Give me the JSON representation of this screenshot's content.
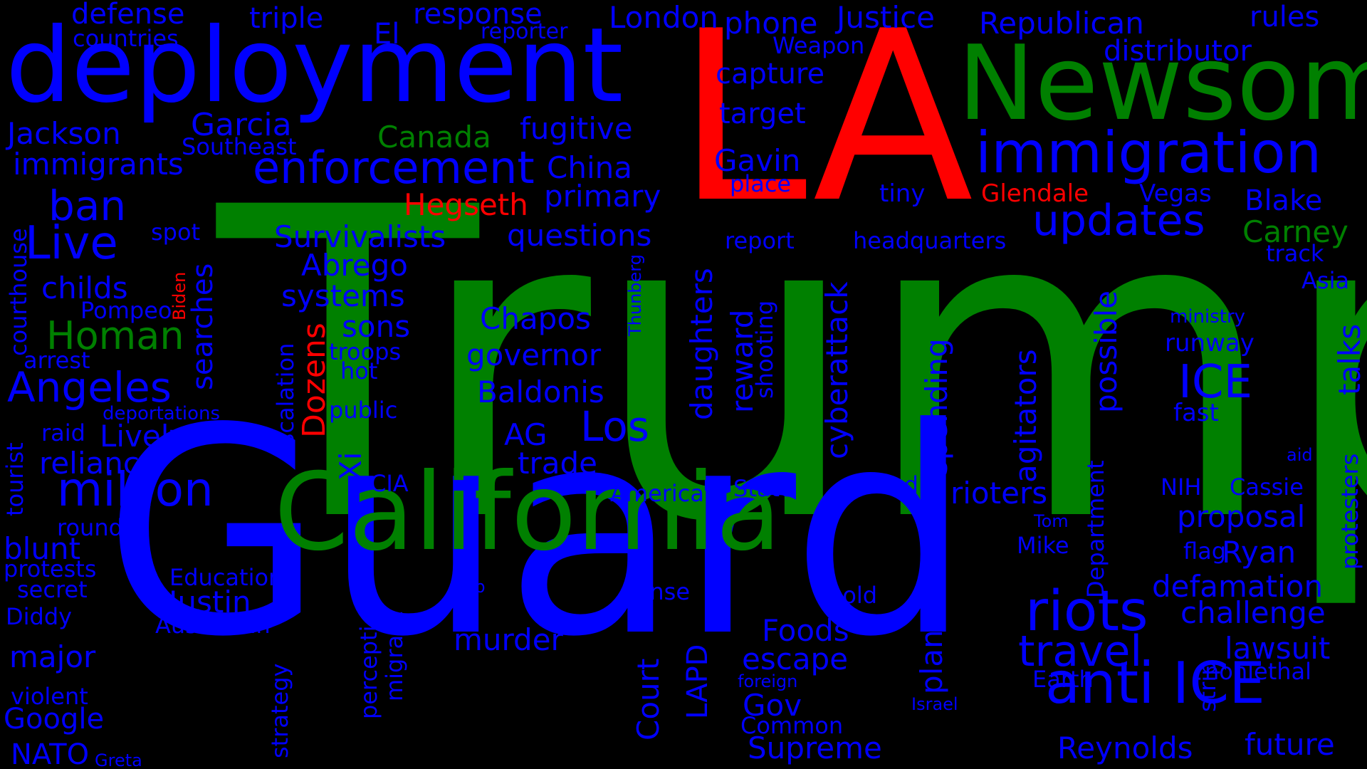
{
  "colors": {
    "background": "#000000",
    "blue": "#0000ff",
    "green": "#008000",
    "red": "#ff0000"
  },
  "words": [
    {
      "text": "Trump",
      "color": "green"
    },
    {
      "text": "Guard",
      "color": "blue"
    },
    {
      "text": "LA",
      "color": "red"
    },
    {
      "text": "deployment",
      "color": "blue"
    },
    {
      "text": "California",
      "color": "green"
    },
    {
      "text": "Newsom",
      "color": "green"
    },
    {
      "text": "immigration",
      "color": "blue"
    },
    {
      "text": "anti ICE",
      "color": "blue"
    },
    {
      "text": "riots",
      "color": "blue"
    },
    {
      "text": "travel",
      "color": "blue"
    },
    {
      "text": "enforcement",
      "color": "blue"
    },
    {
      "text": "million",
      "color": "blue"
    },
    {
      "text": "updates",
      "color": "blue"
    },
    {
      "text": "Live",
      "color": "blue"
    },
    {
      "text": "Angeles",
      "color": "blue"
    },
    {
      "text": "ban",
      "color": "blue"
    },
    {
      "text": "Los",
      "color": "blue"
    },
    {
      "text": "ICE",
      "color": "blue"
    },
    {
      "text": "Homan",
      "color": "green"
    },
    {
      "text": "Canada",
      "color": "green"
    },
    {
      "text": "Carney",
      "color": "green"
    },
    {
      "text": "Hegseth",
      "color": "red"
    },
    {
      "text": "Glendale",
      "color": "red"
    },
    {
      "text": "Dozens",
      "color": "red"
    },
    {
      "text": "Biden",
      "color": "red"
    },
    {
      "text": "Garcia",
      "color": "blue"
    },
    {
      "text": "Jackson",
      "color": "blue"
    },
    {
      "text": "immigrants",
      "color": "blue"
    },
    {
      "text": "defense",
      "color": "blue"
    },
    {
      "text": "countries",
      "color": "blue"
    },
    {
      "text": "triple",
      "color": "blue"
    },
    {
      "text": "El",
      "color": "blue"
    },
    {
      "text": "response",
      "color": "blue"
    },
    {
      "text": "reporter",
      "color": "blue"
    },
    {
      "text": "London",
      "color": "blue"
    },
    {
      "text": "phone",
      "color": "blue"
    },
    {
      "text": "Weapon",
      "color": "blue"
    },
    {
      "text": "Justice",
      "color": "blue"
    },
    {
      "text": "Republican",
      "color": "blue"
    },
    {
      "text": "rules",
      "color": "blue"
    },
    {
      "text": "distributor",
      "color": "blue"
    },
    {
      "text": "capture",
      "color": "blue"
    },
    {
      "text": "target",
      "color": "blue"
    },
    {
      "text": "fugitive",
      "color": "blue"
    },
    {
      "text": "Southeast",
      "color": "blue"
    },
    {
      "text": "China",
      "color": "blue"
    },
    {
      "text": "Gavin",
      "color": "blue"
    },
    {
      "text": "place",
      "color": "blue"
    },
    {
      "text": "tiny",
      "color": "blue"
    },
    {
      "text": "Vegas",
      "color": "blue"
    },
    {
      "text": "Blake",
      "color": "blue"
    },
    {
      "text": "primary",
      "color": "blue"
    },
    {
      "text": "spot",
      "color": "blue"
    },
    {
      "text": "Survivalists",
      "color": "blue"
    },
    {
      "text": "questions",
      "color": "blue"
    },
    {
      "text": "report",
      "color": "blue"
    },
    {
      "text": "headquarters",
      "color": "blue"
    },
    {
      "text": "track",
      "color": "blue"
    },
    {
      "text": "Abrego",
      "color": "blue"
    },
    {
      "text": "childs",
      "color": "blue"
    },
    {
      "text": "systems",
      "color": "blue"
    },
    {
      "text": "Pompeo",
      "color": "blue"
    },
    {
      "text": "Asia",
      "color": "blue"
    },
    {
      "text": "Chapos",
      "color": "blue"
    },
    {
      "text": "sons",
      "color": "blue"
    },
    {
      "text": "ministry",
      "color": "blue"
    },
    {
      "text": "troops",
      "color": "blue"
    },
    {
      "text": "runway",
      "color": "blue"
    },
    {
      "text": "arrest",
      "color": "blue"
    },
    {
      "text": "governor",
      "color": "blue"
    },
    {
      "text": "hot",
      "color": "blue"
    },
    {
      "text": "Baldonis",
      "color": "blue"
    },
    {
      "text": "deportations",
      "color": "blue"
    },
    {
      "text": "public",
      "color": "blue"
    },
    {
      "text": "fast",
      "color": "blue"
    },
    {
      "text": "raid",
      "color": "blue"
    },
    {
      "text": "Lively",
      "color": "blue"
    },
    {
      "text": "AG",
      "color": "blue"
    },
    {
      "text": "aid",
      "color": "blue"
    },
    {
      "text": "reliance",
      "color": "blue"
    },
    {
      "text": "trade",
      "color": "blue"
    },
    {
      "text": "CIA",
      "color": "blue"
    },
    {
      "text": "American",
      "color": "blue"
    },
    {
      "text": "State",
      "color": "blue"
    },
    {
      "text": "deadly",
      "color": "blue"
    },
    {
      "text": "rioters",
      "color": "blue"
    },
    {
      "text": "NIH",
      "color": "blue"
    },
    {
      "text": "Cassie",
      "color": "blue"
    },
    {
      "text": "Tom",
      "color": "blue"
    },
    {
      "text": "proposal",
      "color": "blue"
    },
    {
      "text": "round",
      "color": "blue"
    },
    {
      "text": "blunt",
      "color": "blue"
    },
    {
      "text": "Mike",
      "color": "blue"
    },
    {
      "text": "flag",
      "color": "blue"
    },
    {
      "text": "Ryan",
      "color": "blue"
    },
    {
      "text": "protests",
      "color": "blue"
    },
    {
      "text": "Education",
      "color": "blue"
    },
    {
      "text": "secret",
      "color": "blue"
    },
    {
      "text": "ship",
      "color": "blue"
    },
    {
      "text": "sense",
      "color": "blue"
    },
    {
      "text": "bold",
      "color": "blue"
    },
    {
      "text": "defamation",
      "color": "blue"
    },
    {
      "text": "Justin",
      "color": "blue"
    },
    {
      "text": "challenge",
      "color": "blue"
    },
    {
      "text": "Diddy",
      "color": "blue"
    },
    {
      "text": "Australian",
      "color": "blue"
    },
    {
      "text": "Foods",
      "color": "blue"
    },
    {
      "text": "murder",
      "color": "blue"
    },
    {
      "text": "lawsuit",
      "color": "blue"
    },
    {
      "text": "major",
      "color": "blue"
    },
    {
      "text": "escape",
      "color": "blue"
    },
    {
      "text": "nonlethal",
      "color": "blue"
    },
    {
      "text": "Earth",
      "color": "blue"
    },
    {
      "text": "violent",
      "color": "blue"
    },
    {
      "text": "foreign",
      "color": "blue"
    },
    {
      "text": "Israel",
      "color": "blue"
    },
    {
      "text": "Gov",
      "color": "blue"
    },
    {
      "text": "Google",
      "color": "blue"
    },
    {
      "text": "Common",
      "color": "blue"
    },
    {
      "text": "future",
      "color": "blue"
    },
    {
      "text": "Supreme",
      "color": "blue"
    },
    {
      "text": "Reynolds",
      "color": "blue"
    },
    {
      "text": "NATO",
      "color": "blue"
    },
    {
      "text": "Greta",
      "color": "blue"
    },
    {
      "text": "courthouse",
      "color": "blue"
    },
    {
      "text": "searches",
      "color": "blue"
    },
    {
      "text": "tourist",
      "color": "blue"
    },
    {
      "text": "escalation",
      "color": "blue"
    },
    {
      "text": "Xi",
      "color": "blue"
    },
    {
      "text": "Thunberg",
      "color": "blue"
    },
    {
      "text": "daughters",
      "color": "blue"
    },
    {
      "text": "reward",
      "color": "blue"
    },
    {
      "text": "shooting",
      "color": "blue"
    },
    {
      "text": "cyberattack",
      "color": "blue"
    },
    {
      "text": "spending",
      "color": "blue"
    },
    {
      "text": "agitators",
      "color": "blue"
    },
    {
      "text": "possible",
      "color": "blue"
    },
    {
      "text": "talks",
      "color": "blue"
    },
    {
      "text": "protesters",
      "color": "blue"
    },
    {
      "text": "Department",
      "color": "blue"
    },
    {
      "text": "strip",
      "color": "blue"
    },
    {
      "text": "plan",
      "color": "blue"
    },
    {
      "text": "Court",
      "color": "blue"
    },
    {
      "text": "LAPD",
      "color": "blue"
    },
    {
      "text": "migrant",
      "color": "blue"
    },
    {
      "text": "perception",
      "color": "blue"
    },
    {
      "text": "strategy",
      "color": "blue"
    }
  ]
}
